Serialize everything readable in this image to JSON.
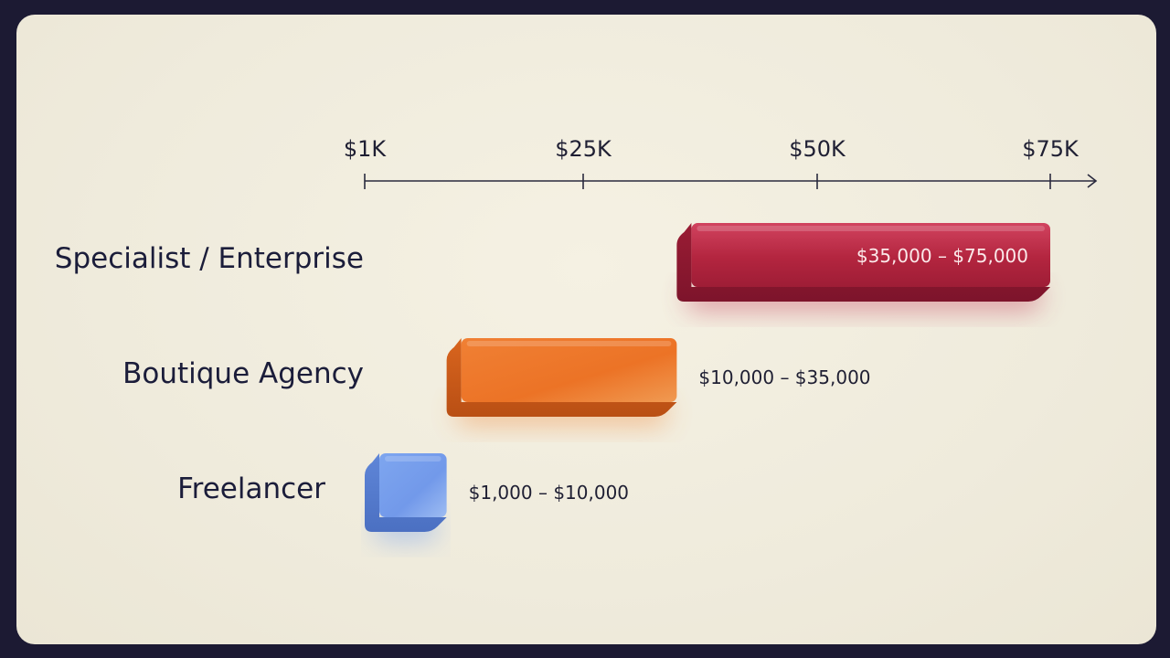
{
  "chart_data": {
    "type": "bar",
    "orientation": "horizontal",
    "title": "",
    "xlabel": "",
    "ylabel": "",
    "grid": false,
    "legend": "none",
    "x_axis": {
      "ticks": [
        {
          "value": 1000,
          "label": "$1K"
        },
        {
          "value": 25000,
          "label": "$25K"
        },
        {
          "value": 50000,
          "label": "$50K"
        },
        {
          "value": 75000,
          "label": "$75K"
        }
      ],
      "xlim": [
        1000,
        80000
      ]
    },
    "bars": [
      {
        "category": "Specialist / Enterprise",
        "start": 35000,
        "end": 75000,
        "label": "$35,000 – $75,000",
        "label_position": "inside",
        "color": "#b42846"
      },
      {
        "category": "Boutique Agency",
        "start": 10000,
        "end": 35000,
        "label": "$10,000 – $35,000",
        "label_position": "outside",
        "color": "#ee7a2d"
      },
      {
        "category": "Freelancer",
        "start": 1000,
        "end": 10000,
        "label": "$1,000 – $10,000",
        "label_position": "outside",
        "color": "#7aa3ec"
      }
    ]
  }
}
